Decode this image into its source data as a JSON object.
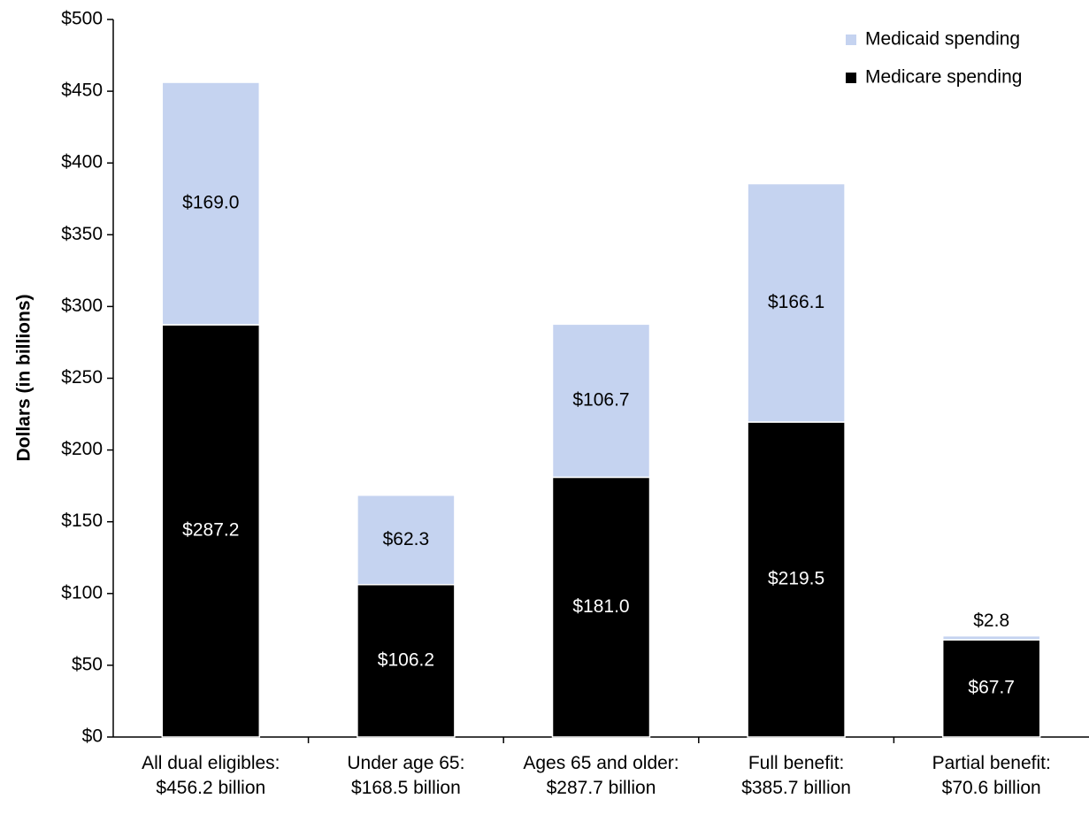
{
  "chart_data": {
    "type": "stacked_bar",
    "ylabel": "Dollars (in billions)",
    "categories": [
      "All dual eligibles:\n$456.2 billion",
      "Under age 65:\n$168.5 billion",
      "Ages 65 and older:\n$287.7 billion",
      "Full benefit:\n$385.7 billion",
      "Partial benefit:\n$70.6 billion"
    ],
    "series": [
      {
        "name": "Medicare spending",
        "color": "#000000",
        "label_color": "#ffffff",
        "values": [
          287.2,
          106.2,
          181.0,
          219.5,
          67.7
        ],
        "value_labels": [
          "$287.2",
          "$106.2",
          "$181.0",
          "$219.5",
          "$67.7"
        ]
      },
      {
        "name": "Medicaid spending",
        "color": "#c5d3f0",
        "label_color": "#000000",
        "values": [
          169.0,
          62.3,
          106.7,
          166.1,
          2.8
        ],
        "value_labels": [
          "$169.0",
          "$62.3",
          "$106.7",
          "$166.1",
          "$2.8"
        ]
      }
    ],
    "ylim": [
      0,
      500
    ],
    "yticks": [
      {
        "value": 0,
        "label": "$0"
      },
      {
        "value": 50,
        "label": "$50"
      },
      {
        "value": 100,
        "label": "$100"
      },
      {
        "value": 150,
        "label": "$150"
      },
      {
        "value": 200,
        "label": "$200"
      },
      {
        "value": 250,
        "label": "$250"
      },
      {
        "value": 300,
        "label": "$300"
      },
      {
        "value": 350,
        "label": "$350"
      },
      {
        "value": 400,
        "label": "$400"
      },
      {
        "value": 450,
        "label": "$450"
      },
      {
        "value": 500,
        "label": "$500"
      }
    ],
    "legend": "top-right"
  }
}
